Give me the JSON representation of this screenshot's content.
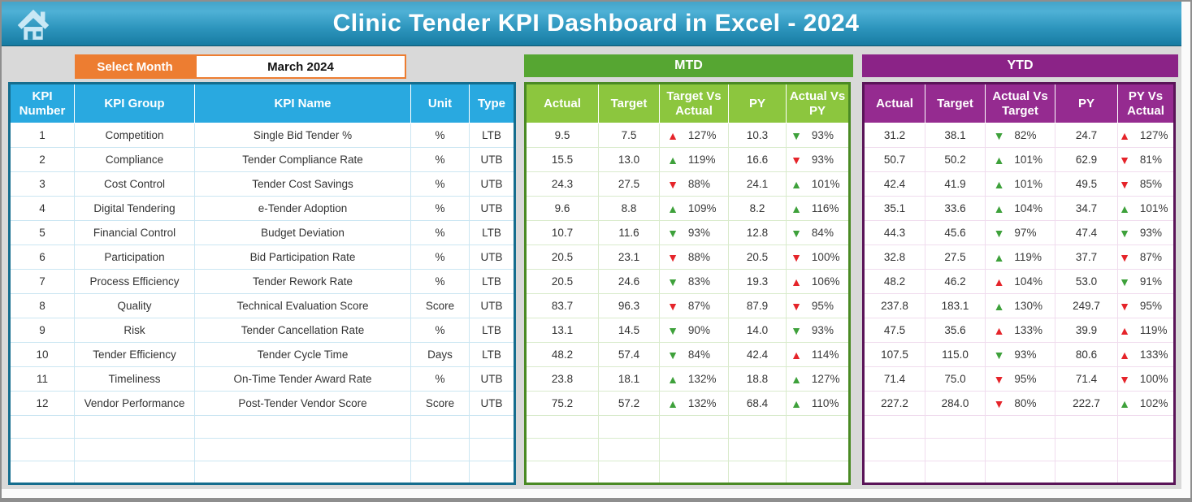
{
  "header": {
    "title": "Clinic Tender KPI Dashboard in Excel - 2024"
  },
  "controls": {
    "select_month_label": "Select Month",
    "selected_month": "March 2024"
  },
  "sections": {
    "mtd_title": "MTD",
    "ytd_title": "YTD"
  },
  "colors": {
    "orange": "#ED7D31",
    "blue_header": "#29A9E0",
    "mtd_bar_green": "#56A632",
    "mtd_header_green": "#8CC63E",
    "ytd_purple": "#8B2387",
    "arrow_green": "#3EA13B",
    "arrow_red": "#E5242A"
  },
  "tables": {
    "info_headers": [
      "KPI Number",
      "KPI Group",
      "KPI Name",
      "Unit",
      "Type"
    ],
    "mtd_headers": [
      "Actual",
      "Target",
      "Target Vs Actual",
      "PY",
      "Actual Vs PY"
    ],
    "ytd_headers": [
      "Actual",
      "Target",
      "Actual Vs Target",
      "PY",
      "PY Vs Actual"
    ],
    "empty_row_count": 3
  },
  "rows": [
    {
      "number": "1",
      "group": "Competition",
      "name": "Single Bid Tender %",
      "unit": "%",
      "type": "LTB",
      "mtd": {
        "actual": "9.5",
        "target": "7.5",
        "target_vs_actual": {
          "dir": "up",
          "tone": "red",
          "value": "127%"
        },
        "py": "10.3",
        "actual_vs_py": {
          "dir": "down",
          "tone": "green",
          "value": "93%"
        }
      },
      "ytd": {
        "actual": "31.2",
        "target": "38.1",
        "actual_vs_target": {
          "dir": "down",
          "tone": "green",
          "value": "82%"
        },
        "py": "24.7",
        "py_vs_actual": {
          "dir": "up",
          "tone": "red",
          "value": "127%"
        }
      }
    },
    {
      "number": "2",
      "group": "Compliance",
      "name": "Tender Compliance Rate",
      "unit": "%",
      "type": "UTB",
      "mtd": {
        "actual": "15.5",
        "target": "13.0",
        "target_vs_actual": {
          "dir": "up",
          "tone": "green",
          "value": "119%"
        },
        "py": "16.6",
        "actual_vs_py": {
          "dir": "down",
          "tone": "red",
          "value": "93%"
        }
      },
      "ytd": {
        "actual": "50.7",
        "target": "50.2",
        "actual_vs_target": {
          "dir": "up",
          "tone": "green",
          "value": "101%"
        },
        "py": "62.9",
        "py_vs_actual": {
          "dir": "down",
          "tone": "red",
          "value": "81%"
        }
      }
    },
    {
      "number": "3",
      "group": "Cost Control",
      "name": "Tender Cost Savings",
      "unit": "%",
      "type": "UTB",
      "mtd": {
        "actual": "24.3",
        "target": "27.5",
        "target_vs_actual": {
          "dir": "down",
          "tone": "red",
          "value": "88%"
        },
        "py": "24.1",
        "actual_vs_py": {
          "dir": "up",
          "tone": "green",
          "value": "101%"
        }
      },
      "ytd": {
        "actual": "42.4",
        "target": "41.9",
        "actual_vs_target": {
          "dir": "up",
          "tone": "green",
          "value": "101%"
        },
        "py": "49.5",
        "py_vs_actual": {
          "dir": "down",
          "tone": "red",
          "value": "85%"
        }
      }
    },
    {
      "number": "4",
      "group": "Digital Tendering",
      "name": "e-Tender Adoption",
      "unit": "%",
      "type": "UTB",
      "mtd": {
        "actual": "9.6",
        "target": "8.8",
        "target_vs_actual": {
          "dir": "up",
          "tone": "green",
          "value": "109%"
        },
        "py": "8.2",
        "actual_vs_py": {
          "dir": "up",
          "tone": "green",
          "value": "116%"
        }
      },
      "ytd": {
        "actual": "35.1",
        "target": "33.6",
        "actual_vs_target": {
          "dir": "up",
          "tone": "green",
          "value": "104%"
        },
        "py": "34.7",
        "py_vs_actual": {
          "dir": "up",
          "tone": "green",
          "value": "101%"
        }
      }
    },
    {
      "number": "5",
      "group": "Financial Control",
      "name": "Budget Deviation",
      "unit": "%",
      "type": "LTB",
      "mtd": {
        "actual": "10.7",
        "target": "11.6",
        "target_vs_actual": {
          "dir": "down",
          "tone": "green",
          "value": "93%"
        },
        "py": "12.8",
        "actual_vs_py": {
          "dir": "down",
          "tone": "green",
          "value": "84%"
        }
      },
      "ytd": {
        "actual": "44.3",
        "target": "45.6",
        "actual_vs_target": {
          "dir": "down",
          "tone": "green",
          "value": "97%"
        },
        "py": "47.4",
        "py_vs_actual": {
          "dir": "down",
          "tone": "green",
          "value": "93%"
        }
      }
    },
    {
      "number": "6",
      "group": "Participation",
      "name": "Bid Participation Rate",
      "unit": "%",
      "type": "UTB",
      "mtd": {
        "actual": "20.5",
        "target": "23.1",
        "target_vs_actual": {
          "dir": "down",
          "tone": "red",
          "value": "88%"
        },
        "py": "20.5",
        "actual_vs_py": {
          "dir": "down",
          "tone": "red",
          "value": "100%"
        }
      },
      "ytd": {
        "actual": "32.8",
        "target": "27.5",
        "actual_vs_target": {
          "dir": "up",
          "tone": "green",
          "value": "119%"
        },
        "py": "37.7",
        "py_vs_actual": {
          "dir": "down",
          "tone": "red",
          "value": "87%"
        }
      }
    },
    {
      "number": "7",
      "group": "Process Efficiency",
      "name": "Tender Rework Rate",
      "unit": "%",
      "type": "LTB",
      "mtd": {
        "actual": "20.5",
        "target": "24.6",
        "target_vs_actual": {
          "dir": "down",
          "tone": "green",
          "value": "83%"
        },
        "py": "19.3",
        "actual_vs_py": {
          "dir": "up",
          "tone": "red",
          "value": "106%"
        }
      },
      "ytd": {
        "actual": "48.2",
        "target": "46.2",
        "actual_vs_target": {
          "dir": "up",
          "tone": "red",
          "value": "104%"
        },
        "py": "53.0",
        "py_vs_actual": {
          "dir": "down",
          "tone": "green",
          "value": "91%"
        }
      }
    },
    {
      "number": "8",
      "group": "Quality",
      "name": "Technical Evaluation Score",
      "unit": "Score",
      "type": "UTB",
      "mtd": {
        "actual": "83.7",
        "target": "96.3",
        "target_vs_actual": {
          "dir": "down",
          "tone": "red",
          "value": "87%"
        },
        "py": "87.9",
        "actual_vs_py": {
          "dir": "down",
          "tone": "red",
          "value": "95%"
        }
      },
      "ytd": {
        "actual": "237.8",
        "target": "183.1",
        "actual_vs_target": {
          "dir": "up",
          "tone": "green",
          "value": "130%"
        },
        "py": "249.7",
        "py_vs_actual": {
          "dir": "down",
          "tone": "red",
          "value": "95%"
        }
      }
    },
    {
      "number": "9",
      "group": "Risk",
      "name": "Tender Cancellation Rate",
      "unit": "%",
      "type": "LTB",
      "mtd": {
        "actual": "13.1",
        "target": "14.5",
        "target_vs_actual": {
          "dir": "down",
          "tone": "green",
          "value": "90%"
        },
        "py": "14.0",
        "actual_vs_py": {
          "dir": "down",
          "tone": "green",
          "value": "93%"
        }
      },
      "ytd": {
        "actual": "47.5",
        "target": "35.6",
        "actual_vs_target": {
          "dir": "up",
          "tone": "red",
          "value": "133%"
        },
        "py": "39.9",
        "py_vs_actual": {
          "dir": "up",
          "tone": "red",
          "value": "119%"
        }
      }
    },
    {
      "number": "10",
      "group": "Tender Efficiency",
      "name": "Tender Cycle Time",
      "unit": "Days",
      "type": "LTB",
      "mtd": {
        "actual": "48.2",
        "target": "57.4",
        "target_vs_actual": {
          "dir": "down",
          "tone": "green",
          "value": "84%"
        },
        "py": "42.4",
        "actual_vs_py": {
          "dir": "up",
          "tone": "red",
          "value": "114%"
        }
      },
      "ytd": {
        "actual": "107.5",
        "target": "115.0",
        "actual_vs_target": {
          "dir": "down",
          "tone": "green",
          "value": "93%"
        },
        "py": "80.6",
        "py_vs_actual": {
          "dir": "up",
          "tone": "red",
          "value": "133%"
        }
      }
    },
    {
      "number": "11",
      "group": "Timeliness",
      "name": "On-Time Tender Award Rate",
      "unit": "%",
      "type": "UTB",
      "mtd": {
        "actual": "23.8",
        "target": "18.1",
        "target_vs_actual": {
          "dir": "up",
          "tone": "green",
          "value": "132%"
        },
        "py": "18.8",
        "actual_vs_py": {
          "dir": "up",
          "tone": "green",
          "value": "127%"
        }
      },
      "ytd": {
        "actual": "71.4",
        "target": "75.0",
        "actual_vs_target": {
          "dir": "down",
          "tone": "red",
          "value": "95%"
        },
        "py": "71.4",
        "py_vs_actual": {
          "dir": "down",
          "tone": "red",
          "value": "100%"
        }
      }
    },
    {
      "number": "12",
      "group": "Vendor Performance",
      "name": "Post-Tender Vendor Score",
      "unit": "Score",
      "type": "UTB",
      "mtd": {
        "actual": "75.2",
        "target": "57.2",
        "target_vs_actual": {
          "dir": "up",
          "tone": "green",
          "value": "132%"
        },
        "py": "68.4",
        "actual_vs_py": {
          "dir": "up",
          "tone": "green",
          "value": "110%"
        }
      },
      "ytd": {
        "actual": "227.2",
        "target": "284.0",
        "actual_vs_target": {
          "dir": "down",
          "tone": "red",
          "value": "80%"
        },
        "py": "222.7",
        "py_vs_actual": {
          "dir": "up",
          "tone": "green",
          "value": "102%"
        }
      }
    }
  ]
}
